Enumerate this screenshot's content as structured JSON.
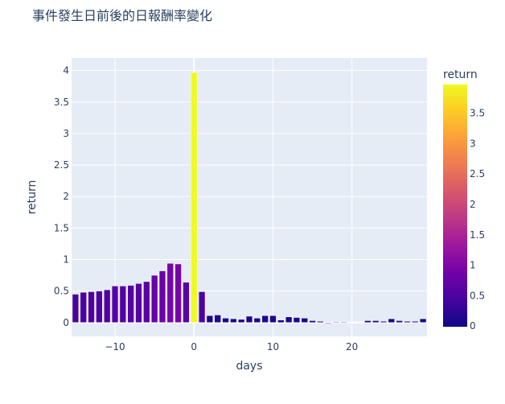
{
  "chart_data": {
    "type": "bar",
    "title": "事件發生日前後的日報酬率變化",
    "xlabel": "days",
    "ylabel": "return",
    "xlim": [
      -15.5,
      29.5
    ],
    "ylim": [
      -0.22,
      4.2
    ],
    "x_ticks": [
      -10,
      0,
      10,
      20
    ],
    "x_tick_labels": [
      "−10",
      "0",
      "10",
      "20"
    ],
    "y_ticks": [
      0,
      0.5,
      1,
      1.5,
      2,
      2.5,
      3,
      3.5,
      4
    ],
    "y_tick_labels": [
      "0",
      "0.5",
      "1",
      "1.5",
      "2",
      "2.5",
      "3",
      "3.5",
      "4"
    ],
    "grid": true,
    "legend": "none",
    "colorbar": {
      "title": "return",
      "range": [
        -0.01,
        3.97
      ],
      "ticks": [
        0,
        0.5,
        1,
        1.5,
        2,
        2.5,
        3,
        3.5
      ],
      "tick_labels": [
        "0",
        "0.5",
        "1",
        "1.5",
        "2",
        "2.5",
        "3",
        "3.5"
      ],
      "colorscale": [
        "#0d0887",
        "#46039f",
        "#7201a8",
        "#9c179e",
        "#bd3786",
        "#d8576b",
        "#ed7953",
        "#fb9f3a",
        "#fdca26",
        "#f0f921"
      ]
    },
    "x": [
      -15,
      -14,
      -13,
      -12,
      -11,
      -10,
      -9,
      -8,
      -7,
      -6,
      -5,
      -4,
      -3,
      -2,
      -1,
      0,
      1,
      2,
      3,
      4,
      5,
      6,
      7,
      8,
      9,
      10,
      11,
      12,
      13,
      14,
      15,
      16,
      17,
      18,
      19,
      20,
      21,
      22,
      23,
      24,
      25,
      26,
      27,
      28,
      29
    ],
    "values": [
      0.45,
      0.48,
      0.49,
      0.5,
      0.52,
      0.58,
      0.58,
      0.59,
      0.62,
      0.65,
      0.75,
      0.82,
      0.94,
      0.93,
      0.64,
      3.97,
      0.49,
      0.11,
      0.12,
      0.07,
      0.06,
      0.05,
      0.1,
      0.07,
      0.11,
      0.11,
      0.04,
      0.09,
      0.08,
      0.07,
      0.03,
      0.02,
      -0.01,
      0.01,
      0.01,
      0.0,
      0.0,
      0.03,
      0.03,
      0.02,
      0.06,
      0.03,
      0.02,
      0.02,
      0.06
    ]
  },
  "colors": {
    "plot_bg": "#e5ecf6",
    "grid": "#ffffff",
    "text": "#2a3f5f",
    "bar_outline": "#ffffff"
  }
}
